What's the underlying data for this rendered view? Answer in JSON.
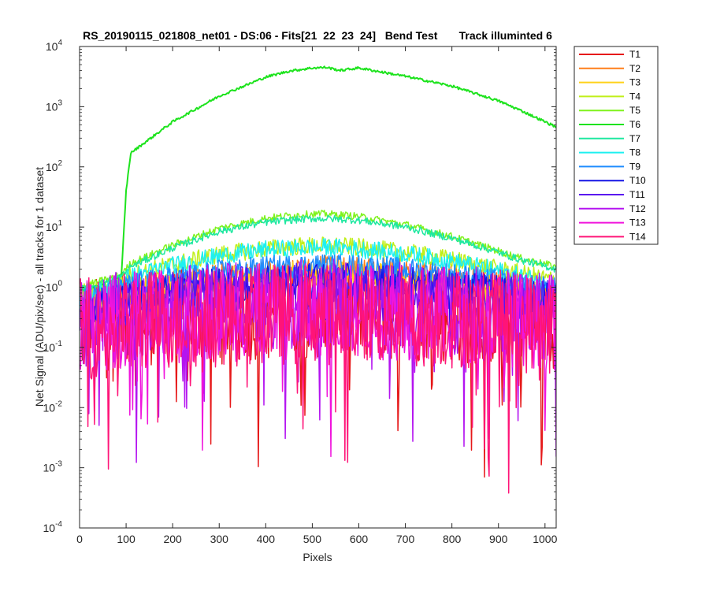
{
  "chart_data": {
    "type": "line",
    "title": "RS_20190115_021808_net01 - DS:06 - Fits[21  22  23  24]   Bend Test       Track illuminted 6",
    "xlabel": "Pixels",
    "ylabel": "Net Signal (ADU/pix/sec) - all tracks for 1 dataset",
    "xlim": [
      0,
      1024
    ],
    "ylim": [
      0.0001,
      10000
    ],
    "yscale": "log",
    "x_ticks": [
      0,
      100,
      200,
      300,
      400,
      500,
      600,
      700,
      800,
      900,
      1000
    ],
    "y_ticks": [
      {
        "value": 0.0001,
        "base": "10",
        "exp": "-4"
      },
      {
        "value": 0.001,
        "base": "10",
        "exp": "-3"
      },
      {
        "value": 0.01,
        "base": "10",
        "exp": "-2"
      },
      {
        "value": 0.1,
        "base": "10",
        "exp": "-1"
      },
      {
        "value": 1,
        "base": "10",
        "exp": "0"
      },
      {
        "value": 10,
        "base": "10",
        "exp": "1"
      },
      {
        "value": 100,
        "base": "10",
        "exp": "2"
      },
      {
        "value": 1000,
        "base": "10",
        "exp": "3"
      },
      {
        "value": 10000,
        "base": "10",
        "exp": "4"
      }
    ],
    "grid": false,
    "legend_position": "outside-right",
    "x": [
      0,
      50,
      90,
      100,
      110,
      200,
      300,
      400,
      450,
      500,
      530,
      560,
      600,
      700,
      800,
      900,
      950,
      1024
    ],
    "series": [
      {
        "name": "T1",
        "color": "#e6191a",
        "noise": 0.8,
        "values": [
          0.2,
          0.25,
          0.28,
          0.3,
          0.3,
          0.33,
          0.36,
          0.38,
          0.39,
          0.4,
          0.4,
          0.4,
          0.39,
          0.37,
          0.34,
          0.3,
          0.28,
          0.25
        ]
      },
      {
        "name": "T2",
        "color": "#ff7f1a",
        "noise": 0.25,
        "values": [
          0.5,
          0.6,
          0.7,
          0.75,
          0.8,
          1.1,
          1.4,
          1.7,
          1.8,
          1.9,
          1.9,
          1.9,
          1.85,
          1.7,
          1.4,
          1.1,
          0.95,
          0.8
        ]
      },
      {
        "name": "T3",
        "color": "#ffd21a",
        "noise": 0.25,
        "values": [
          0.5,
          0.6,
          0.7,
          0.72,
          0.78,
          1.0,
          1.25,
          1.45,
          1.5,
          1.55,
          1.55,
          1.55,
          1.5,
          1.35,
          1.15,
          0.95,
          0.85,
          0.7
        ]
      },
      {
        "name": "T4",
        "color": "#c0ef19",
        "noise": 0.15,
        "values": [
          0.8,
          1.0,
          1.2,
          1.4,
          1.6,
          2.4,
          3.5,
          4.4,
          4.7,
          4.9,
          4.9,
          4.8,
          4.6,
          3.8,
          2.9,
          2.0,
          1.7,
          1.3
        ]
      },
      {
        "name": "T5",
        "color": "#7ff21c",
        "noise": 0.06,
        "values": [
          1.0,
          1.3,
          1.6,
          2.0,
          2.5,
          5.0,
          9.5,
          14.0,
          15.5,
          16.5,
          16.5,
          16.0,
          15.0,
          11.0,
          7.0,
          4.0,
          3.0,
          2.2
        ]
      },
      {
        "name": "T6",
        "color": "#1ee31e",
        "noise": 0.02,
        "values": [
          0.9,
          1.1,
          1.6,
          40,
          170,
          560,
          1500,
          3100,
          3900,
          4400,
          4500,
          4000,
          4400,
          3200,
          2200,
          1250,
          850,
          460
        ]
      },
      {
        "name": "T7",
        "color": "#1ee8a0",
        "noise": 0.06,
        "values": [
          0.9,
          1.2,
          1.5,
          1.8,
          2.2,
          4.5,
          8.5,
          12.0,
          13.0,
          13.8,
          13.8,
          13.5,
          13.0,
          10.0,
          6.5,
          3.8,
          2.8,
          2.0
        ]
      },
      {
        "name": "T8",
        "color": "#1ef0f0",
        "noise": 0.15,
        "values": [
          0.7,
          0.9,
          1.1,
          1.3,
          1.5,
          2.3,
          3.3,
          4.2,
          4.4,
          4.6,
          4.6,
          4.5,
          4.3,
          3.6,
          2.7,
          1.9,
          1.5,
          1.1
        ]
      },
      {
        "name": "T9",
        "color": "#1e8cff",
        "noise": 0.2,
        "values": [
          0.6,
          0.75,
          0.9,
          1.0,
          1.1,
          1.4,
          1.8,
          2.1,
          2.2,
          2.3,
          2.3,
          2.25,
          2.2,
          1.95,
          1.6,
          1.25,
          1.1,
          0.9
        ]
      },
      {
        "name": "T10",
        "color": "#1414e6",
        "noise": 0.3,
        "values": [
          0.4,
          0.5,
          0.6,
          0.62,
          0.65,
          0.85,
          1.05,
          1.2,
          1.25,
          1.3,
          1.3,
          1.3,
          1.25,
          1.15,
          0.95,
          0.8,
          0.7,
          0.6
        ]
      },
      {
        "name": "T11",
        "color": "#5a14f0",
        "noise": 0.4,
        "values": [
          0.35,
          0.42,
          0.5,
          0.52,
          0.55,
          0.7,
          0.85,
          0.95,
          1.0,
          1.0,
          1.0,
          1.0,
          0.98,
          0.9,
          0.78,
          0.65,
          0.58,
          0.5
        ]
      },
      {
        "name": "T12",
        "color": "#b414f0",
        "noise": 0.75,
        "values": [
          0.25,
          0.3,
          0.33,
          0.34,
          0.35,
          0.4,
          0.45,
          0.5,
          0.52,
          0.52,
          0.52,
          0.52,
          0.5,
          0.47,
          0.42,
          0.37,
          0.34,
          0.3
        ]
      },
      {
        "name": "T13",
        "color": "#f014dc",
        "noise": 0.8,
        "values": [
          0.22,
          0.25,
          0.28,
          0.29,
          0.3,
          0.33,
          0.36,
          0.38,
          0.39,
          0.4,
          0.4,
          0.4,
          0.39,
          0.37,
          0.34,
          0.31,
          0.29,
          0.26
        ]
      },
      {
        "name": "T14",
        "color": "#ff1478",
        "noise": 0.85,
        "values": [
          0.2,
          0.22,
          0.25,
          0.26,
          0.27,
          0.3,
          0.33,
          0.35,
          0.36,
          0.36,
          0.36,
          0.36,
          0.35,
          0.33,
          0.31,
          0.28,
          0.26,
          0.24
        ]
      }
    ]
  }
}
